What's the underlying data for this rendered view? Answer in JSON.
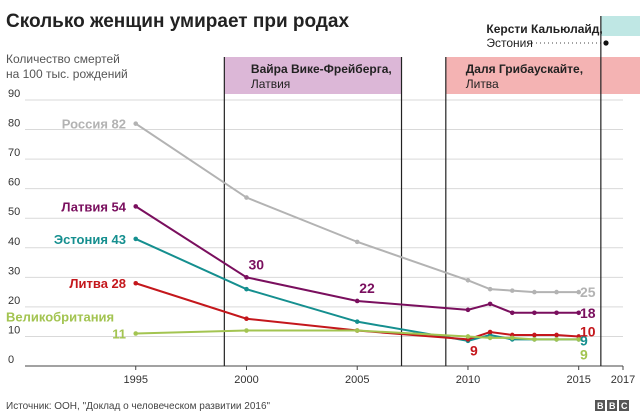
{
  "header": {
    "title": "Сколько женщин умирает при родах",
    "y_unit_line1": "Количество смертей",
    "y_unit_line2": "на 100 тыс. рождений"
  },
  "source": "Источник: ООН, \"Доклад о человеческом развитии 2016\"",
  "brand": [
    "B",
    "B",
    "C"
  ],
  "presidents": [
    {
      "name": "Вайра Вике-Фрейберга",
      "country": "Латвия",
      "start": 1999,
      "end": 2007,
      "color": "#dcb7d7",
      "label_x": 2000.2
    },
    {
      "name": "Даля Грибаускайте",
      "country": "Литва",
      "start": 2009,
      "end": 2019,
      "color": "#f4b3b3",
      "label_x": 2009.9
    },
    {
      "name": "Керсти Кальюлайд",
      "country": "Эстония",
      "start": 2016,
      "end": 2019,
      "color": "#bfe7e4",
      "label_x": 2010.2
    }
  ],
  "chart_data": {
    "type": "line",
    "title": "Сколько женщин умирает при родах",
    "ylabel": "Количество смертей на 100 тыс. рождений",
    "xlabel": "",
    "xlim": [
      1990,
      2017
    ],
    "ylim": [
      0,
      90
    ],
    "x_ticks": [
      1995,
      2000,
      2005,
      2010,
      2015,
      2017
    ],
    "y_ticks": [
      0,
      10,
      20,
      30,
      40,
      50,
      60,
      70,
      80,
      90
    ],
    "grid": true,
    "legend": "inline labels",
    "series": [
      {
        "name": "Россия",
        "color": "#b3b3b3",
        "x": [
          1995,
          2000,
          2005,
          2010,
          2011,
          2012,
          2013,
          2014,
          2015
        ],
        "y": [
          82,
          57,
          42,
          29,
          26,
          25.5,
          25,
          25,
          25
        ],
        "start_label": "Россия 82",
        "end_label": "25"
      },
      {
        "name": "Латвия",
        "color": "#7a0f5e",
        "x": [
          1995,
          2000,
          2005,
          2010,
          2011,
          2012,
          2013,
          2014,
          2015
        ],
        "y": [
          54,
          30,
          22,
          19,
          21,
          18,
          18,
          18,
          18
        ],
        "start_label": "Латвия 54",
        "end_label": "18",
        "mid_labels": [
          {
            "x": 2000,
            "text": "30"
          },
          {
            "x": 2005,
            "text": "22"
          }
        ]
      },
      {
        "name": "Эстония",
        "color": "#158f8f",
        "x": [
          1995,
          2000,
          2005,
          2010,
          2011,
          2012,
          2013,
          2014,
          2015
        ],
        "y": [
          43,
          26,
          15,
          8.5,
          10.5,
          9,
          9,
          9,
          9
        ],
        "start_label": "Эстония 43",
        "end_label": "9"
      },
      {
        "name": "Литва",
        "color": "#c4171c",
        "x": [
          1995,
          2000,
          2005,
          2010,
          2011,
          2012,
          2013,
          2014,
          2015
        ],
        "y": [
          28,
          16,
          12,
          9,
          11.5,
          10.5,
          10.5,
          10.5,
          10
        ],
        "start_label": "Литва 28",
        "end_label": "10",
        "mid_labels": [
          {
            "x": 2010,
            "text": "9"
          }
        ]
      },
      {
        "name": "Великобритания",
        "color": "#a3c451",
        "x": [
          1995,
          2000,
          2005,
          2010,
          2011,
          2012,
          2013,
          2014,
          2015
        ],
        "y": [
          11,
          12,
          12,
          10,
          9.5,
          9.5,
          9,
          9,
          9
        ],
        "start_label": "Великобритания",
        "start_value": "11",
        "end_label": "9"
      }
    ]
  }
}
